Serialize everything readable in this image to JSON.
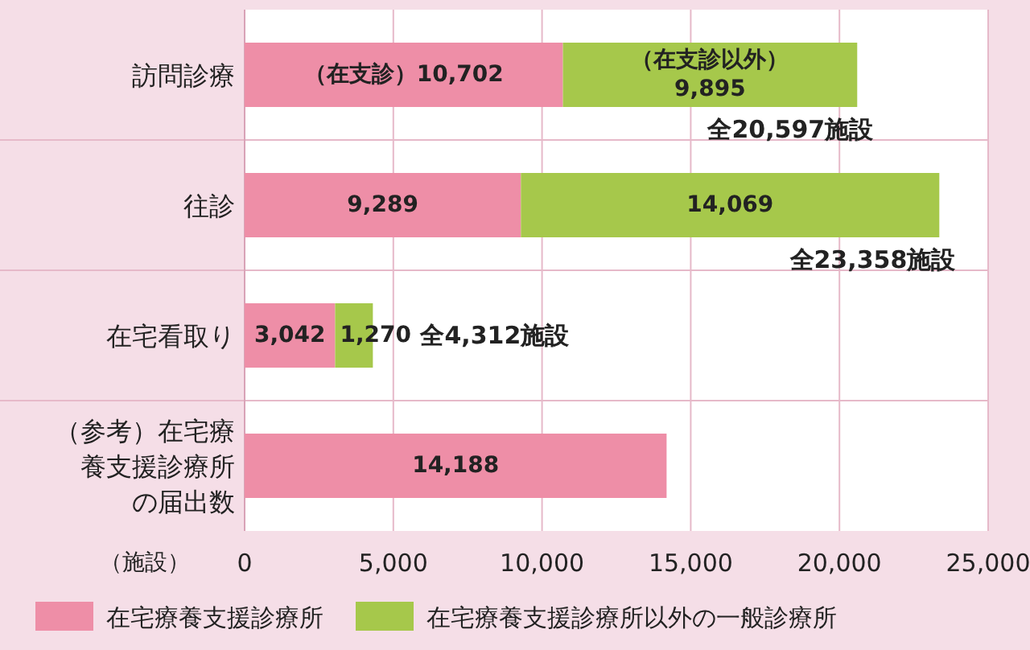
{
  "chart_data": {
    "type": "bar",
    "orientation": "horizontal",
    "stacked": true,
    "xlabel": "（施設）",
    "categories": [
      "訪問診療",
      "往診",
      "在宅看取り",
      "（参考）在宅療養支援診療所の届出数"
    ],
    "series": [
      {
        "name": "在宅療養支援診療所",
        "color": "#ee8ea7",
        "values": [
          10702,
          9289,
          3042,
          14188
        ],
        "value_labels": [
          "（在支診）10,702",
          "9,289",
          "3,042",
          "14,188"
        ]
      },
      {
        "name": "在宅療養支援診療所以外の一般診療所",
        "color": "#a6c84b",
        "values": [
          9895,
          14069,
          1270,
          null
        ],
        "value_labels": [
          "（在支診以外）\n9,895",
          "14,069",
          "1,270",
          null
        ]
      }
    ],
    "totals": [
      "全20,597施設",
      "全23,358施設",
      "全4,312施設",
      null
    ],
    "xlim": [
      0,
      25000
    ],
    "xticks": [
      {
        "value": 0,
        "label": "0"
      },
      {
        "value": 5000,
        "label": "5,000"
      },
      {
        "value": 10000,
        "label": "10,000"
      },
      {
        "value": 15000,
        "label": "15,000"
      },
      {
        "value": 20000,
        "label": "20,000"
      },
      {
        "value": 25000,
        "label": "25,000"
      }
    ],
    "grid": "x",
    "legend": "bottom"
  }
}
